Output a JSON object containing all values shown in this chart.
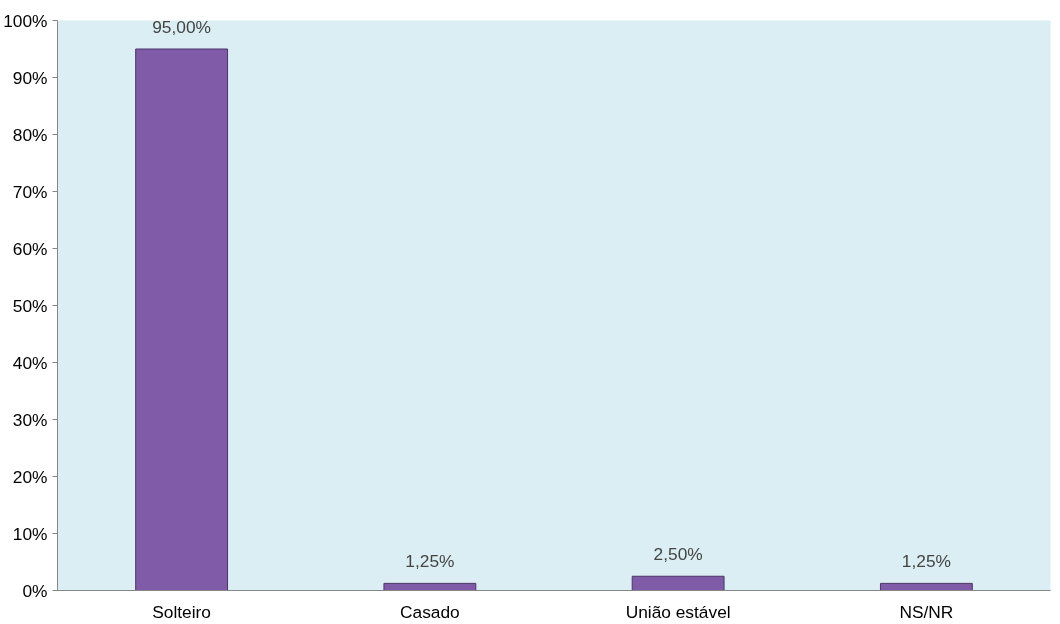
{
  "chart_data": {
    "type": "bar",
    "categories": [
      "Solteiro",
      "Casado",
      "União estável",
      "NS/NR"
    ],
    "values": [
      95,
      1.25,
      2.5,
      1.25
    ],
    "color": "#7f5ba8",
    "value_labels": [
      "95,00%",
      "1,25%",
      "2,50%",
      "1,25%"
    ],
    "ylim": [
      0,
      100
    ],
    "yticks": [
      {
        "value": 0,
        "label": "0%"
      },
      {
        "value": 10,
        "label": "10%"
      },
      {
        "value": 20,
        "label": "20%"
      },
      {
        "value": 30,
        "label": "30%"
      },
      {
        "value": 40,
        "label": "40%"
      },
      {
        "value": 50,
        "label": "50%"
      },
      {
        "value": 60,
        "label": "60%"
      },
      {
        "value": 70,
        "label": "70%"
      },
      {
        "value": 80,
        "label": "80%"
      },
      {
        "value": 90,
        "label": "90%"
      },
      {
        "value": 100,
        "label": "100%"
      }
    ],
    "grid": false
  }
}
